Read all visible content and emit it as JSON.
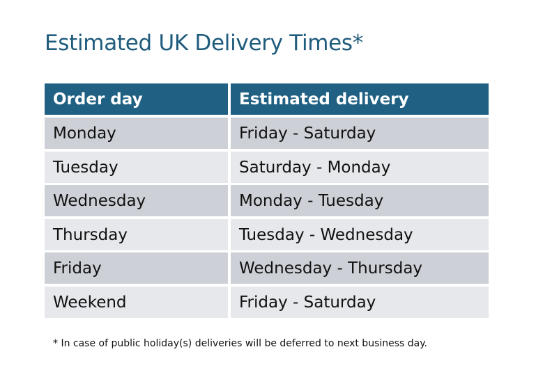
{
  "title": "Estimated UK Delivery Times*",
  "table": {
    "headers": [
      "Order day",
      "Estimated delivery"
    ],
    "rows": [
      [
        "Monday",
        "Friday - Saturday"
      ],
      [
        "Tuesday",
        "Saturday - Monday"
      ],
      [
        "Wednesday",
        "Monday - Tuesday"
      ],
      [
        "Thursday",
        "Tuesday - Wednesday"
      ],
      [
        "Friday",
        "Wednesday - Thursday"
      ],
      [
        "Weekend",
        "Friday - Saturday"
      ]
    ]
  },
  "footnote": "* In case of public holiday(s) deliveries will be deferred to next business day.",
  "colors": {
    "header": "#1f6083",
    "title": "#1f5b7c",
    "row_odd": "#cdd1d7",
    "row_even": "#e6e8eb"
  }
}
